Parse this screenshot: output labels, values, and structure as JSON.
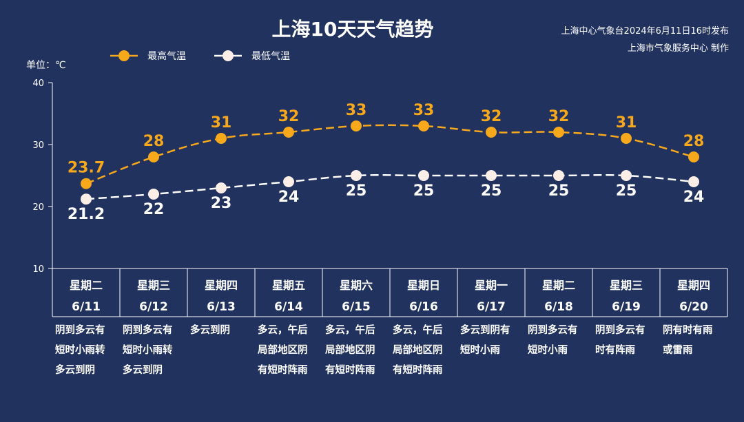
{
  "chart_data": {
    "type": "line",
    "title": "上海10天天气趋势",
    "publisher": "上海中心气象台2024年6月11日16时发布",
    "producer": "上海市气象服务中心 制作",
    "unit_label": "单位：℃",
    "ylim": [
      10,
      40
    ],
    "yticks": [
      "40",
      "30",
      "20",
      "10"
    ],
    "legend_position": "top-left",
    "days": [
      {
        "weekday": "星期二",
        "date": "6/11",
        "weather": [
          "阴到多云有",
          "短时小雨转",
          "多云到阴"
        ]
      },
      {
        "weekday": "星期三",
        "date": "6/12",
        "weather": [
          "阴到多云有",
          "短时小雨转",
          "多云到阴"
        ]
      },
      {
        "weekday": "星期四",
        "date": "6/13",
        "weather": [
          "多云到阴"
        ]
      },
      {
        "weekday": "星期五",
        "date": "6/14",
        "weather": [
          "多云，午后",
          "局部地区阴",
          "有短时阵雨"
        ]
      },
      {
        "weekday": "星期六",
        "date": "6/15",
        "weather": [
          "多云，午后",
          "局部地区阴",
          "有短时阵雨"
        ]
      },
      {
        "weekday": "星期日",
        "date": "6/16",
        "weather": [
          "多云，午后",
          "局部地区阴",
          "有短时阵雨"
        ]
      },
      {
        "weekday": "星期一",
        "date": "6/17",
        "weather": [
          "多云到阴有",
          "短时小雨"
        ]
      },
      {
        "weekday": "星期二",
        "date": "6/18",
        "weather": [
          "阴到多云有",
          "短时小雨"
        ]
      },
      {
        "weekday": "星期三",
        "date": "6/19",
        "weather": [
          "阴到多云有",
          "时有阵雨"
        ]
      },
      {
        "weekday": "星期四",
        "date": "6/20",
        "weather": [
          "阴有时有雨",
          "或雷雨"
        ]
      }
    ],
    "series": [
      {
        "name": "最高气温",
        "color": "#f7a81b",
        "values": [
          23.7,
          28,
          31,
          32,
          33,
          33,
          32,
          32,
          31,
          28
        ],
        "labels": [
          "23.7",
          "28",
          "31",
          "32",
          "33",
          "33",
          "32",
          "32",
          "31",
          "28"
        ]
      },
      {
        "name": "最低气温",
        "color": "#ffffff",
        "values": [
          21.2,
          22,
          23,
          24,
          25,
          25,
          25,
          25,
          25,
          24
        ],
        "labels": [
          "21.2",
          "22",
          "23",
          "24",
          "25",
          "25",
          "25",
          "25",
          "25",
          "24"
        ]
      }
    ]
  }
}
